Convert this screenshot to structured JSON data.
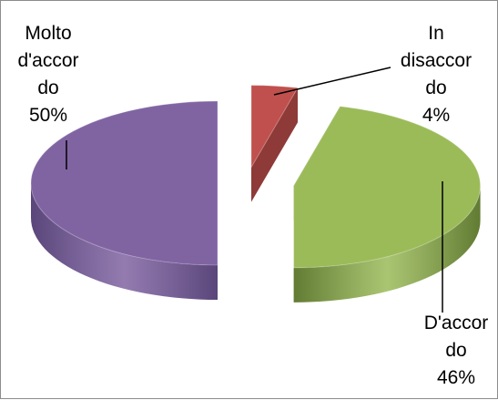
{
  "chart_data": {
    "type": "pie",
    "style": "3d-exploded",
    "categories": [
      "In disaccordo",
      "D'accordo",
      "Molto d'accordo"
    ],
    "values": [
      4,
      46,
      50
    ],
    "unit": "%",
    "colors": [
      "#C0504D",
      "#9BBB59",
      "#8064A2"
    ],
    "side_colors": [
      "#8E3A38",
      "#617B33",
      "#5A467A"
    ],
    "labels": [
      {
        "lines": [
          "In",
          "disaccor",
          "do",
          "4%"
        ]
      },
      {
        "lines": [
          "D'accor",
          "do",
          "46%"
        ]
      },
      {
        "lines": [
          "Molto",
          "d'accor",
          "do",
          "50%"
        ]
      }
    ],
    "title": "",
    "legend": "none",
    "grid": false
  }
}
